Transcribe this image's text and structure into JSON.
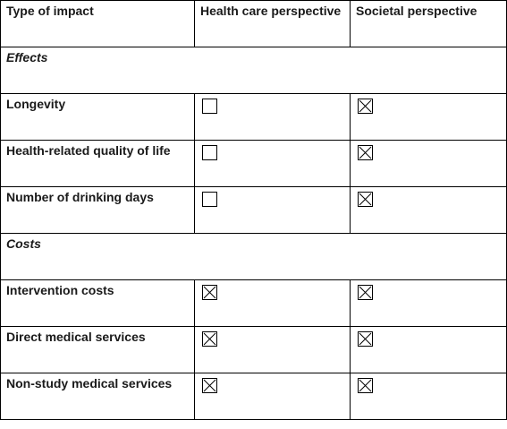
{
  "header": {
    "col1": "Type of impact",
    "col2": "Health care perspective",
    "col3": "Societal perspective"
  },
  "sections": [
    {
      "label": "Effects",
      "rows": [
        {
          "label": "Longevity",
          "health_care": false,
          "societal": true
        },
        {
          "label": "Health-related quality of life",
          "health_care": false,
          "societal": true
        },
        {
          "label": "Number of drinking days",
          "health_care": false,
          "societal": true
        }
      ]
    },
    {
      "label": "Costs",
      "rows": [
        {
          "label": "Intervention costs",
          "health_care": true,
          "societal": true
        },
        {
          "label": "Direct medical services",
          "health_care": true,
          "societal": true
        },
        {
          "label": "Non-study medical services",
          "health_care": true,
          "societal": true
        }
      ]
    }
  ]
}
